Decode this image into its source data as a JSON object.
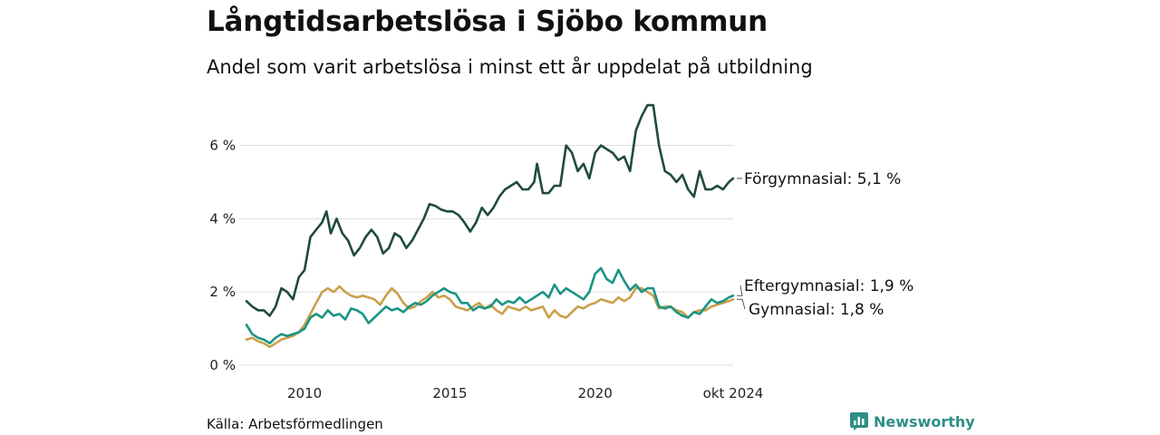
{
  "title": "Långtidsarbetslösa i Sjöbo kommun",
  "subtitle": "Andel som varit arbetslösa i minst ett år uppdelat på utbildning",
  "source": "Källa: Arbetsförmedlingen",
  "brand": "Newsworthy",
  "colors": {
    "forgymnasial": "#1f4a40",
    "eftergymnasial": "#1a9484",
    "gymnasial": "#c9a04a",
    "grid": "#dddddd",
    "brand": "#2e8f86"
  },
  "chart_data": {
    "type": "line",
    "x_start": "2008-01",
    "x_end": "2024-10",
    "x_tick_labels": [
      {
        "x": 2010,
        "label": "2010"
      },
      {
        "x": 2015,
        "label": "2015"
      },
      {
        "x": 2020,
        "label": "2020"
      },
      {
        "x": 2024.75,
        "label": "okt 2024"
      }
    ],
    "y_ticks": [
      0,
      2,
      4,
      6
    ],
    "y_tick_labels": [
      "0 %",
      "2 %",
      "4 %",
      "6 %"
    ],
    "ylim": [
      0,
      7.3
    ],
    "grid": "horizontal",
    "series": [
      {
        "name": "Förgymnasial",
        "end_label": "Förgymnasial: 5,1 %",
        "color": "#1f4a40",
        "points": [
          [
            2008.0,
            1.75
          ],
          [
            2008.2,
            1.6
          ],
          [
            2008.4,
            1.5
          ],
          [
            2008.6,
            1.5
          ],
          [
            2008.8,
            1.35
          ],
          [
            2009.0,
            1.6
          ],
          [
            2009.2,
            2.1
          ],
          [
            2009.4,
            2.0
          ],
          [
            2009.6,
            1.8
          ],
          [
            2009.8,
            2.4
          ],
          [
            2010.0,
            2.6
          ],
          [
            2010.2,
            3.5
          ],
          [
            2010.4,
            3.7
          ],
          [
            2010.6,
            3.9
          ],
          [
            2010.75,
            4.2
          ],
          [
            2010.9,
            3.6
          ],
          [
            2011.1,
            4.0
          ],
          [
            2011.3,
            3.6
          ],
          [
            2011.5,
            3.4
          ],
          [
            2011.7,
            3.0
          ],
          [
            2011.9,
            3.2
          ],
          [
            2012.1,
            3.5
          ],
          [
            2012.3,
            3.7
          ],
          [
            2012.5,
            3.5
          ],
          [
            2012.7,
            3.05
          ],
          [
            2012.9,
            3.2
          ],
          [
            2013.1,
            3.6
          ],
          [
            2013.3,
            3.5
          ],
          [
            2013.5,
            3.2
          ],
          [
            2013.7,
            3.4
          ],
          [
            2013.9,
            3.7
          ],
          [
            2014.1,
            4.0
          ],
          [
            2014.3,
            4.4
          ],
          [
            2014.5,
            4.35
          ],
          [
            2014.7,
            4.25
          ],
          [
            2014.9,
            4.2
          ],
          [
            2015.1,
            4.2
          ],
          [
            2015.3,
            4.1
          ],
          [
            2015.5,
            3.9
          ],
          [
            2015.7,
            3.65
          ],
          [
            2015.9,
            3.9
          ],
          [
            2016.1,
            4.3
          ],
          [
            2016.3,
            4.1
          ],
          [
            2016.5,
            4.3
          ],
          [
            2016.7,
            4.6
          ],
          [
            2016.9,
            4.8
          ],
          [
            2017.1,
            4.9
          ],
          [
            2017.3,
            5.0
          ],
          [
            2017.5,
            4.8
          ],
          [
            2017.7,
            4.8
          ],
          [
            2017.9,
            5.0
          ],
          [
            2018.0,
            5.5
          ],
          [
            2018.2,
            4.7
          ],
          [
            2018.4,
            4.7
          ],
          [
            2018.6,
            4.9
          ],
          [
            2018.8,
            4.9
          ],
          [
            2019.0,
            6.0
          ],
          [
            2019.2,
            5.8
          ],
          [
            2019.4,
            5.3
          ],
          [
            2019.6,
            5.5
          ],
          [
            2019.8,
            5.1
          ],
          [
            2020.0,
            5.8
          ],
          [
            2020.2,
            6.0
          ],
          [
            2020.4,
            5.9
          ],
          [
            2020.6,
            5.8
          ],
          [
            2020.8,
            5.6
          ],
          [
            2021.0,
            5.7
          ],
          [
            2021.2,
            5.3
          ],
          [
            2021.4,
            6.4
          ],
          [
            2021.6,
            6.8
          ],
          [
            2021.8,
            7.1
          ],
          [
            2022.0,
            7.1
          ],
          [
            2022.2,
            6.0
          ],
          [
            2022.4,
            5.3
          ],
          [
            2022.6,
            5.2
          ],
          [
            2022.8,
            5.0
          ],
          [
            2023.0,
            5.2
          ],
          [
            2023.2,
            4.8
          ],
          [
            2023.4,
            4.6
          ],
          [
            2023.6,
            5.3
          ],
          [
            2023.8,
            4.8
          ],
          [
            2024.0,
            4.8
          ],
          [
            2024.2,
            4.9
          ],
          [
            2024.4,
            4.8
          ],
          [
            2024.6,
            5.0
          ],
          [
            2024.75,
            5.1
          ]
        ]
      },
      {
        "name": "Eftergymnasial",
        "end_label": "Eftergymnasial: 1,9 %",
        "color": "#1a9484",
        "points": [
          [
            2008.0,
            1.1
          ],
          [
            2008.2,
            0.85
          ],
          [
            2008.4,
            0.75
          ],
          [
            2008.6,
            0.7
          ],
          [
            2008.8,
            0.6
          ],
          [
            2009.0,
            0.75
          ],
          [
            2009.2,
            0.85
          ],
          [
            2009.4,
            0.8
          ],
          [
            2009.6,
            0.85
          ],
          [
            2009.8,
            0.9
          ],
          [
            2010.0,
            1.0
          ],
          [
            2010.2,
            1.3
          ],
          [
            2010.4,
            1.4
          ],
          [
            2010.6,
            1.3
          ],
          [
            2010.8,
            1.5
          ],
          [
            2011.0,
            1.35
          ],
          [
            2011.2,
            1.4
          ],
          [
            2011.4,
            1.25
          ],
          [
            2011.6,
            1.55
          ],
          [
            2011.8,
            1.5
          ],
          [
            2012.0,
            1.4
          ],
          [
            2012.2,
            1.15
          ],
          [
            2012.4,
            1.3
          ],
          [
            2012.6,
            1.45
          ],
          [
            2012.8,
            1.6
          ],
          [
            2013.0,
            1.5
          ],
          [
            2013.2,
            1.55
          ],
          [
            2013.4,
            1.45
          ],
          [
            2013.6,
            1.6
          ],
          [
            2013.8,
            1.7
          ],
          [
            2014.0,
            1.65
          ],
          [
            2014.2,
            1.75
          ],
          [
            2014.4,
            1.9
          ],
          [
            2014.6,
            2.0
          ],
          [
            2014.8,
            2.1
          ],
          [
            2015.0,
            2.0
          ],
          [
            2015.2,
            1.95
          ],
          [
            2015.4,
            1.7
          ],
          [
            2015.6,
            1.7
          ],
          [
            2015.8,
            1.5
          ],
          [
            2016.0,
            1.6
          ],
          [
            2016.2,
            1.55
          ],
          [
            2016.4,
            1.6
          ],
          [
            2016.6,
            1.8
          ],
          [
            2016.8,
            1.65
          ],
          [
            2017.0,
            1.75
          ],
          [
            2017.2,
            1.7
          ],
          [
            2017.4,
            1.85
          ],
          [
            2017.6,
            1.7
          ],
          [
            2017.8,
            1.8
          ],
          [
            2018.0,
            1.9
          ],
          [
            2018.2,
            2.0
          ],
          [
            2018.4,
            1.85
          ],
          [
            2018.6,
            2.2
          ],
          [
            2018.8,
            1.95
          ],
          [
            2019.0,
            2.1
          ],
          [
            2019.2,
            2.0
          ],
          [
            2019.4,
            1.9
          ],
          [
            2019.6,
            1.8
          ],
          [
            2019.8,
            2.0
          ],
          [
            2020.0,
            2.5
          ],
          [
            2020.2,
            2.65
          ],
          [
            2020.4,
            2.35
          ],
          [
            2020.6,
            2.25
          ],
          [
            2020.8,
            2.6
          ],
          [
            2021.0,
            2.3
          ],
          [
            2021.2,
            2.05
          ],
          [
            2021.4,
            2.2
          ],
          [
            2021.6,
            2.0
          ],
          [
            2021.8,
            2.1
          ],
          [
            2022.0,
            2.1
          ],
          [
            2022.2,
            1.6
          ],
          [
            2022.4,
            1.55
          ],
          [
            2022.6,
            1.6
          ],
          [
            2022.8,
            1.45
          ],
          [
            2023.0,
            1.35
          ],
          [
            2023.2,
            1.3
          ],
          [
            2023.4,
            1.45
          ],
          [
            2023.6,
            1.4
          ],
          [
            2023.8,
            1.6
          ],
          [
            2024.0,
            1.8
          ],
          [
            2024.2,
            1.7
          ],
          [
            2024.4,
            1.75
          ],
          [
            2024.6,
            1.85
          ],
          [
            2024.75,
            1.9
          ]
        ]
      },
      {
        "name": "Gymnasial",
        "end_label": "Gymnasial: 1,8 %",
        "color": "#c9a04a",
        "points": [
          [
            2008.0,
            0.7
          ],
          [
            2008.2,
            0.75
          ],
          [
            2008.4,
            0.65
          ],
          [
            2008.6,
            0.6
          ],
          [
            2008.8,
            0.5
          ],
          [
            2009.0,
            0.6
          ],
          [
            2009.2,
            0.7
          ],
          [
            2009.4,
            0.75
          ],
          [
            2009.6,
            0.8
          ],
          [
            2009.8,
            0.9
          ],
          [
            2010.0,
            1.1
          ],
          [
            2010.2,
            1.4
          ],
          [
            2010.4,
            1.7
          ],
          [
            2010.6,
            2.0
          ],
          [
            2010.8,
            2.1
          ],
          [
            2011.0,
            2.0
          ],
          [
            2011.2,
            2.15
          ],
          [
            2011.4,
            2.0
          ],
          [
            2011.6,
            1.9
          ],
          [
            2011.8,
            1.85
          ],
          [
            2012.0,
            1.9
          ],
          [
            2012.2,
            1.85
          ],
          [
            2012.4,
            1.8
          ],
          [
            2012.6,
            1.65
          ],
          [
            2012.8,
            1.9
          ],
          [
            2013.0,
            2.1
          ],
          [
            2013.2,
            1.95
          ],
          [
            2013.4,
            1.7
          ],
          [
            2013.6,
            1.55
          ],
          [
            2013.8,
            1.6
          ],
          [
            2014.0,
            1.75
          ],
          [
            2014.2,
            1.85
          ],
          [
            2014.4,
            2.0
          ],
          [
            2014.6,
            1.85
          ],
          [
            2014.8,
            1.9
          ],
          [
            2015.0,
            1.8
          ],
          [
            2015.2,
            1.6
          ],
          [
            2015.4,
            1.55
          ],
          [
            2015.6,
            1.5
          ],
          [
            2015.8,
            1.6
          ],
          [
            2016.0,
            1.7
          ],
          [
            2016.2,
            1.55
          ],
          [
            2016.4,
            1.65
          ],
          [
            2016.6,
            1.5
          ],
          [
            2016.8,
            1.4
          ],
          [
            2017.0,
            1.6
          ],
          [
            2017.2,
            1.55
          ],
          [
            2017.4,
            1.5
          ],
          [
            2017.6,
            1.6
          ],
          [
            2017.8,
            1.5
          ],
          [
            2018.0,
            1.55
          ],
          [
            2018.2,
            1.6
          ],
          [
            2018.4,
            1.3
          ],
          [
            2018.6,
            1.5
          ],
          [
            2018.8,
            1.35
          ],
          [
            2019.0,
            1.3
          ],
          [
            2019.2,
            1.45
          ],
          [
            2019.4,
            1.6
          ],
          [
            2019.6,
            1.55
          ],
          [
            2019.8,
            1.65
          ],
          [
            2020.0,
            1.7
          ],
          [
            2020.2,
            1.8
          ],
          [
            2020.4,
            1.75
          ],
          [
            2020.6,
            1.7
          ],
          [
            2020.8,
            1.85
          ],
          [
            2021.0,
            1.75
          ],
          [
            2021.2,
            1.85
          ],
          [
            2021.4,
            2.1
          ],
          [
            2021.6,
            2.1
          ],
          [
            2021.8,
            2.0
          ],
          [
            2022.0,
            1.9
          ],
          [
            2022.2,
            1.55
          ],
          [
            2022.4,
            1.6
          ],
          [
            2022.6,
            1.6
          ],
          [
            2022.8,
            1.5
          ],
          [
            2023.0,
            1.45
          ],
          [
            2023.2,
            1.3
          ],
          [
            2023.4,
            1.45
          ],
          [
            2023.6,
            1.5
          ],
          [
            2023.8,
            1.5
          ],
          [
            2024.0,
            1.6
          ],
          [
            2024.2,
            1.65
          ],
          [
            2024.4,
            1.7
          ],
          [
            2024.6,
            1.75
          ],
          [
            2024.75,
            1.8
          ]
        ]
      }
    ]
  }
}
